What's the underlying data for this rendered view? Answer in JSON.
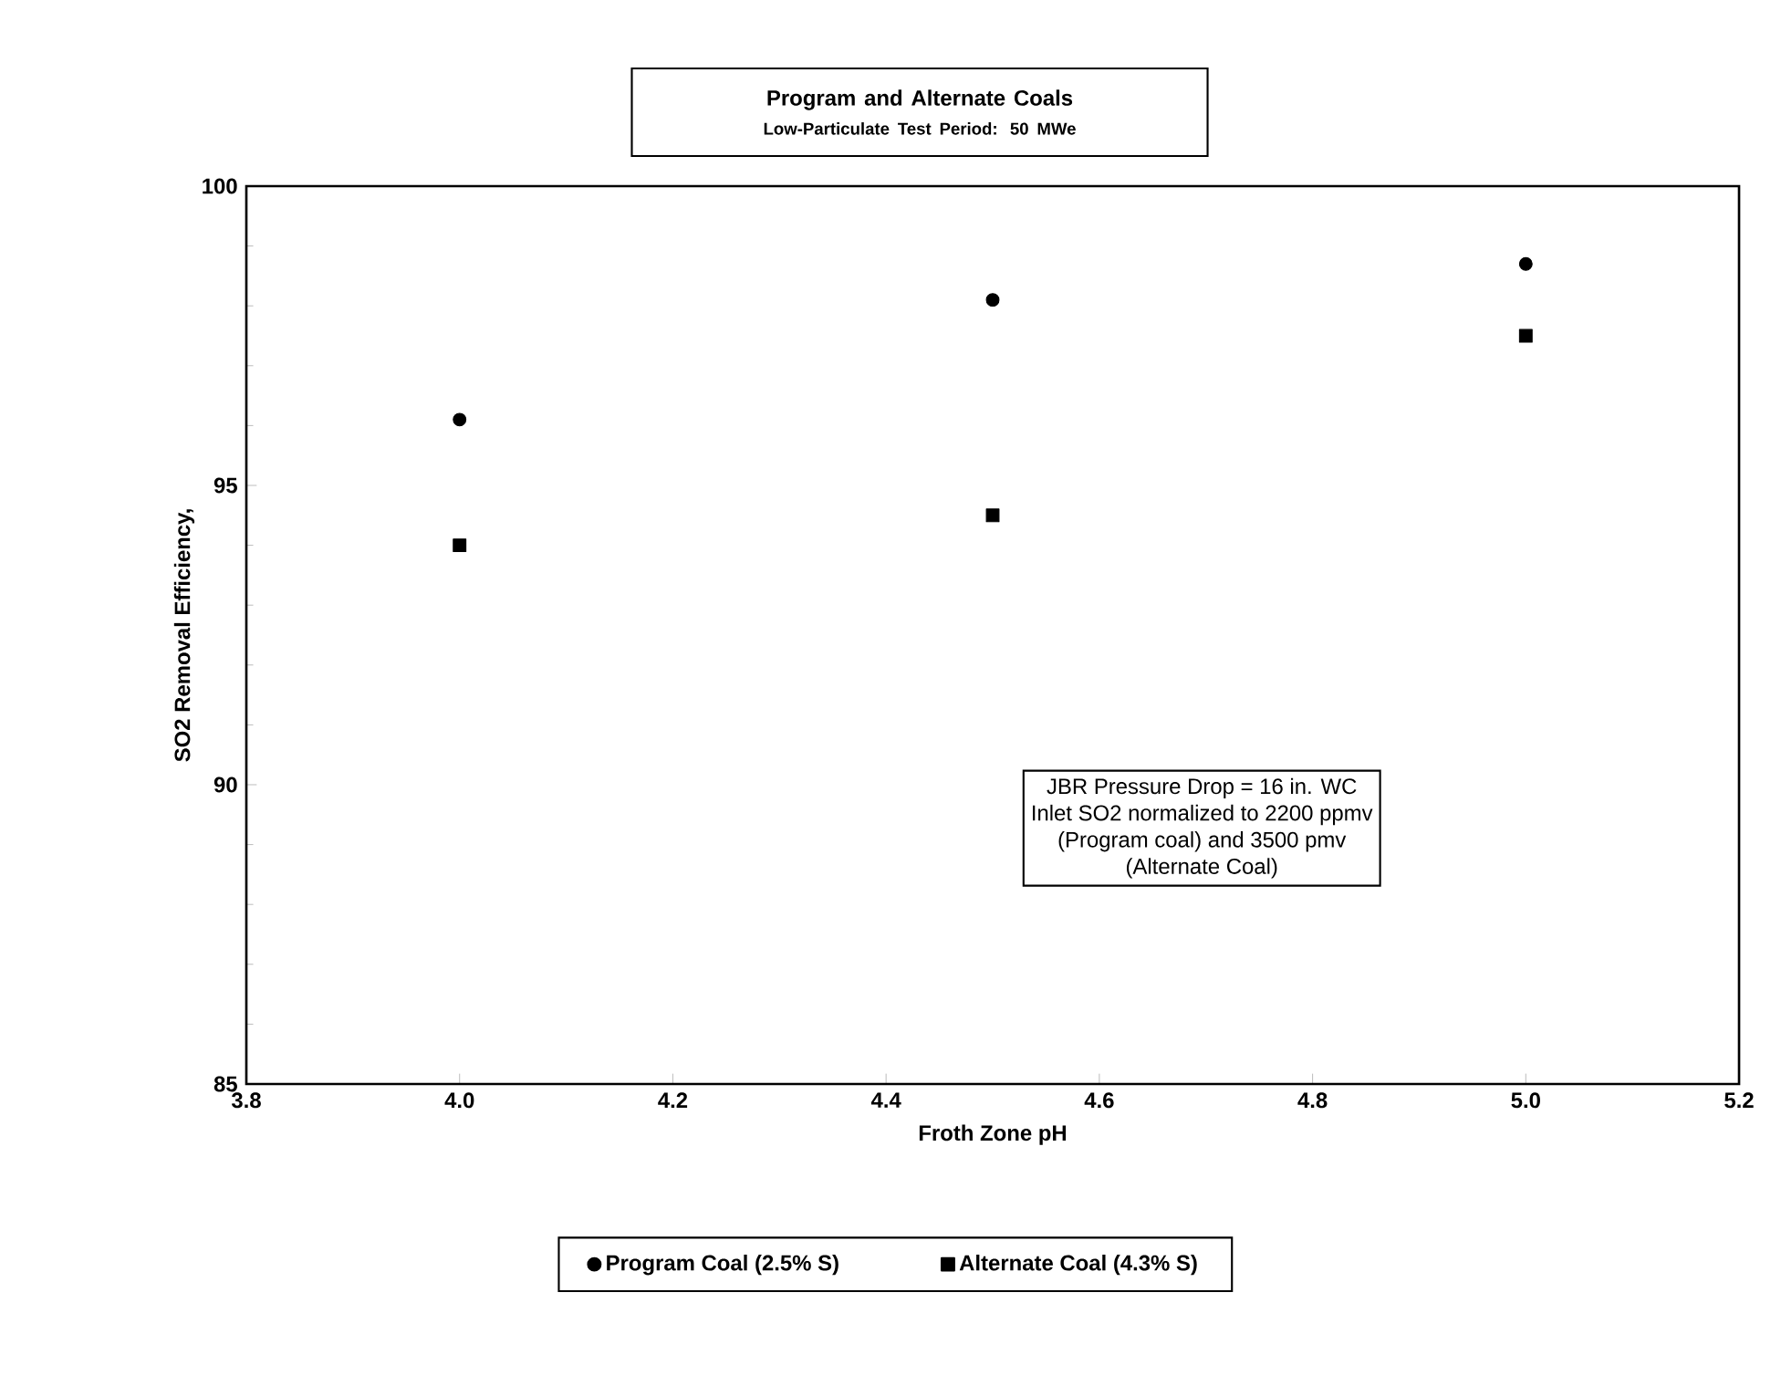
{
  "chart_data": {
    "type": "scatter",
    "title": "Program and Alternate Coals",
    "subtitle": "Low-Particulate Test Period:  50 MWe",
    "xlabel": "Froth Zone pH",
    "ylabel": "SO2 Removal Efficiency,",
    "x": [
      4.0,
      4.5,
      5.0
    ],
    "series": [
      {
        "name": "Program Coal (2.5% S)",
        "color": "#000000",
        "marker": "circle",
        "values": [
          96.1,
          98.1,
          98.7
        ]
      },
      {
        "name": "Alternate Coal (4.3% S)",
        "color": "#000000",
        "marker": "square",
        "values": [
          94.0,
          94.5,
          97.5
        ]
      }
    ],
    "xlim": [
      3.8,
      5.2
    ],
    "xticks": [
      {
        "value": 3.8,
        "label": "3.8"
      },
      {
        "value": 4.0,
        "label": "4.0"
      },
      {
        "value": 4.2,
        "label": "4.2"
      },
      {
        "value": 4.4,
        "label": "4.4"
      },
      {
        "value": 4.6,
        "label": "4.6"
      },
      {
        "value": 4.8,
        "label": "4.8"
      },
      {
        "value": 5.0,
        "label": "5.0"
      },
      {
        "value": 5.2,
        "label": "5.2"
      }
    ],
    "ylim": [
      85,
      100
    ],
    "yticks": [
      85,
      90,
      95,
      100
    ],
    "annotations": [
      "JBR Pressure Drop = 16 in. WC",
      "Inlet SO2 normalized to 2200 ppmv",
      "(Program coal) and 3500 pmv",
      "(Alternate Coal)"
    ],
    "legend": "bottom",
    "grid": false
  }
}
